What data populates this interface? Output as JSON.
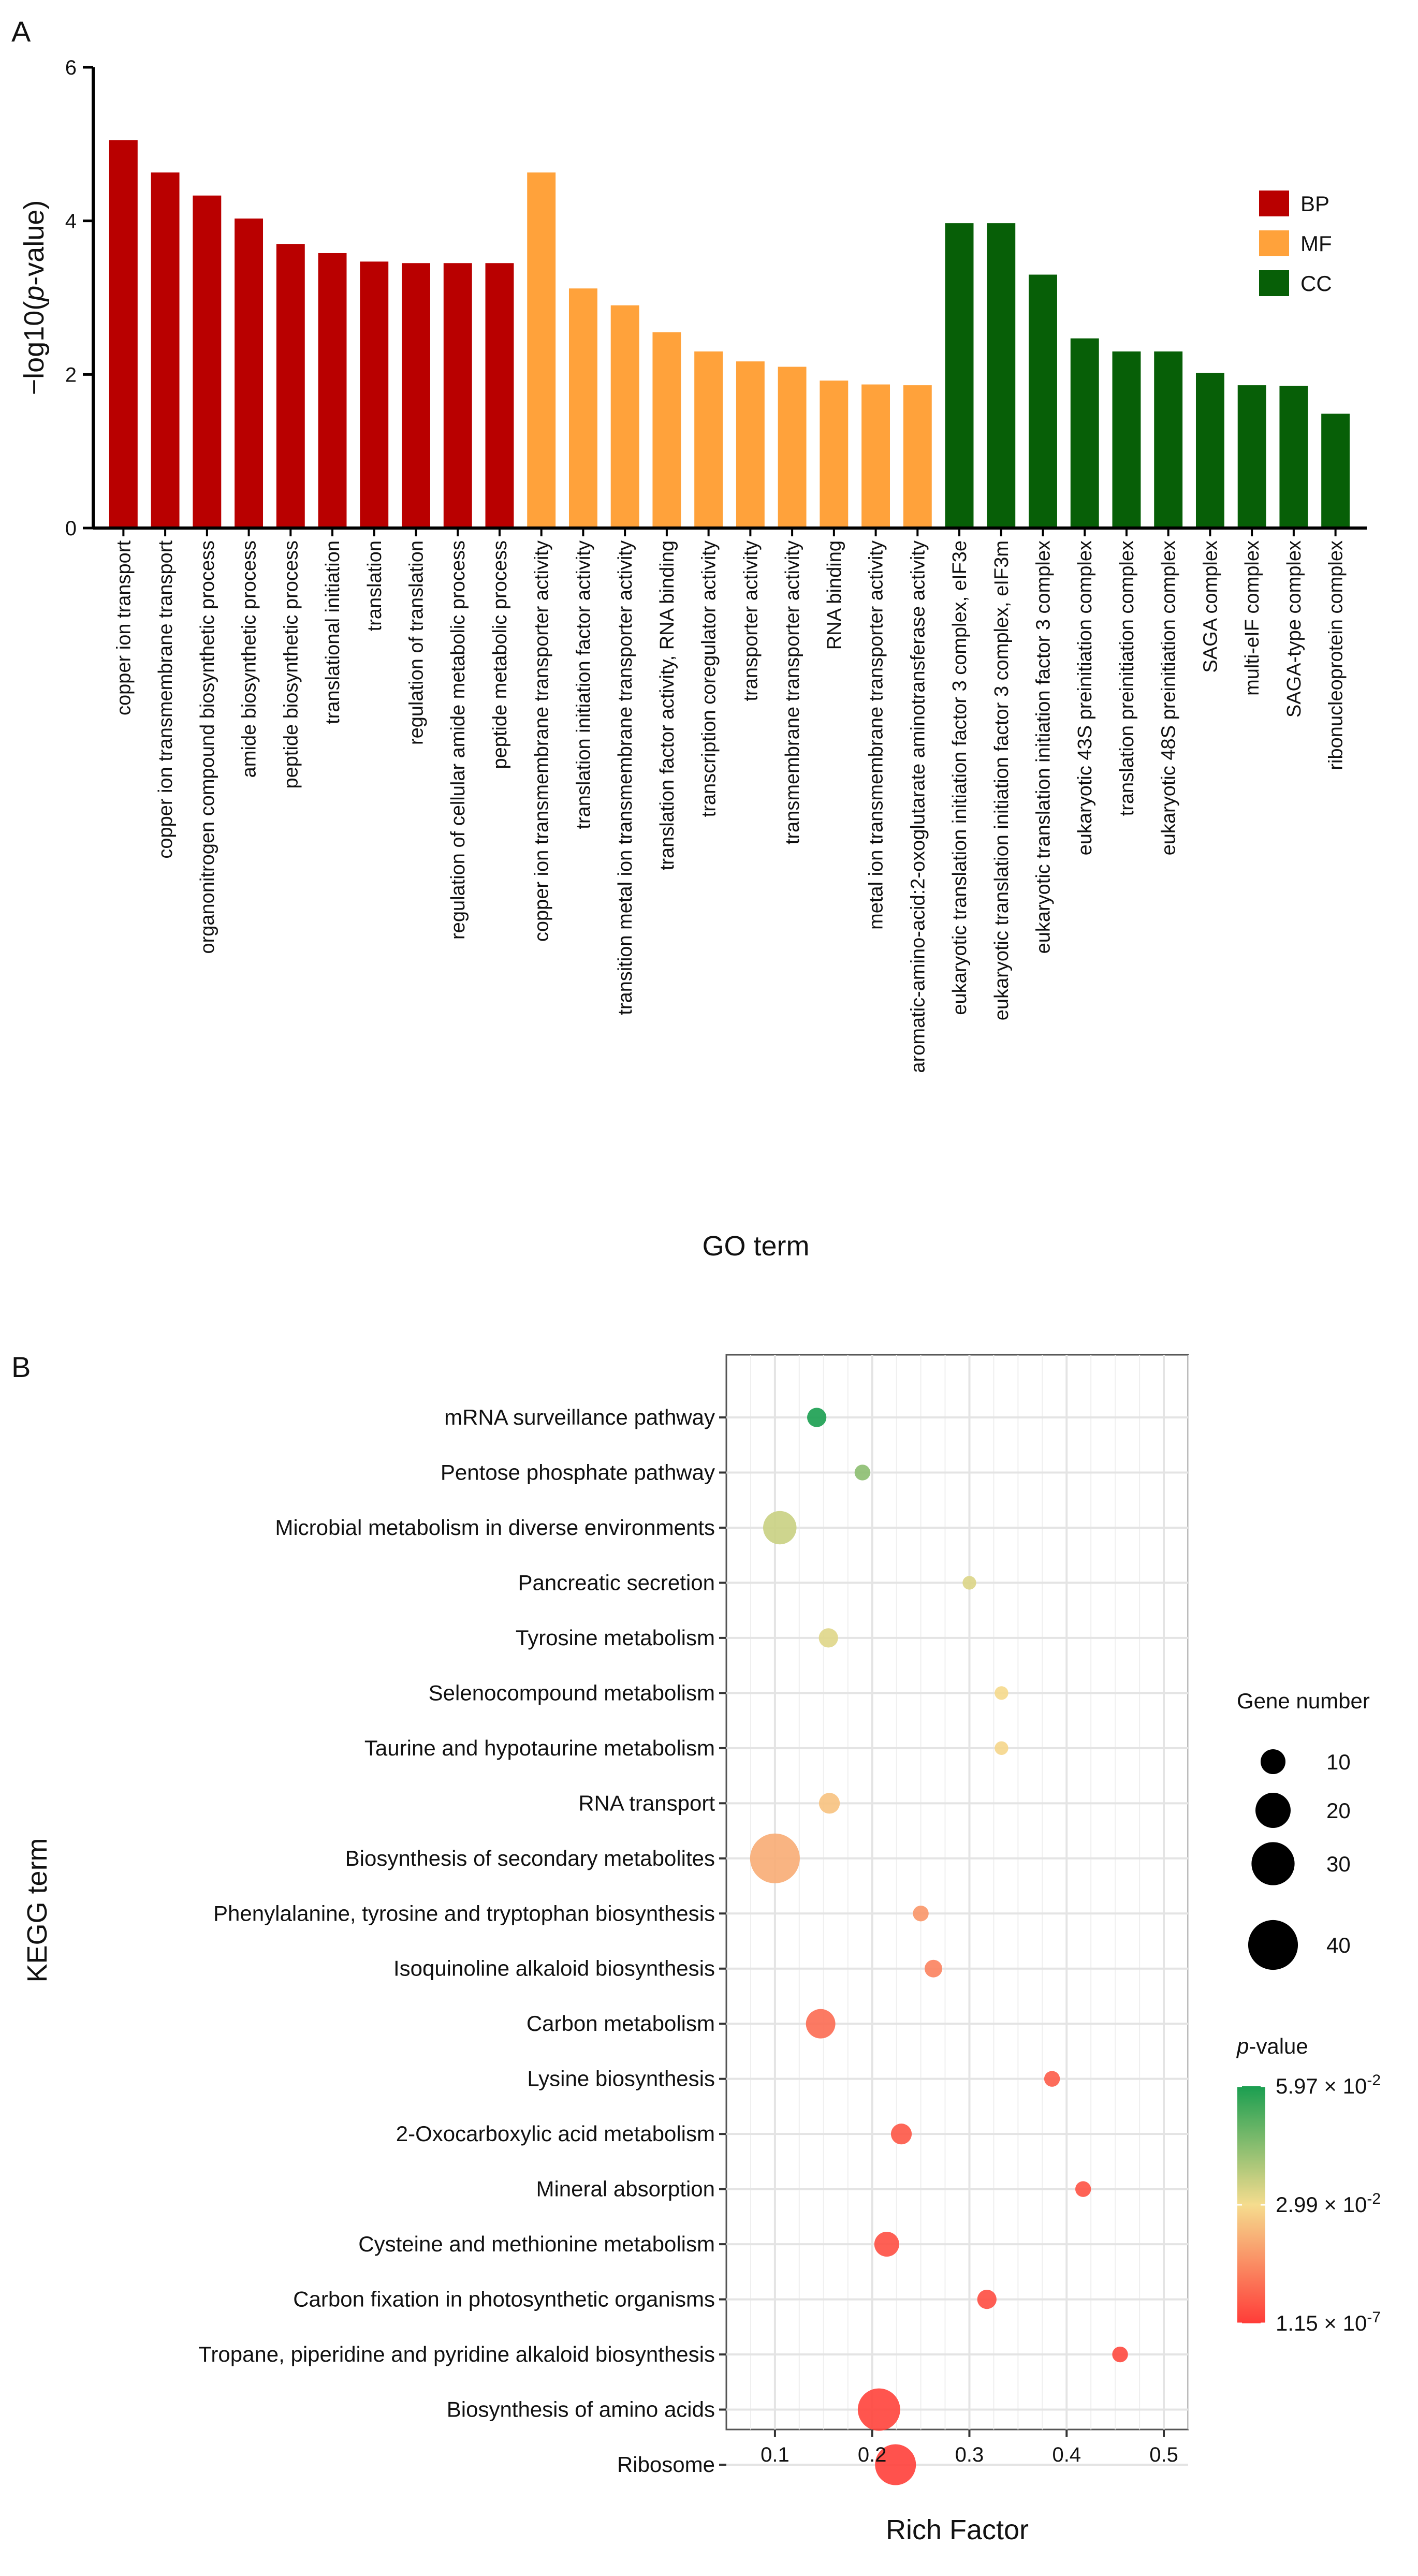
{
  "chart_data": [
    {
      "panel": "A",
      "type": "bar",
      "xlabel": "GO term",
      "ylabel": "-log10(p-value)",
      "ylim": [
        0,
        6
      ],
      "yticks": [
        0,
        2,
        4,
        6
      ],
      "legend": {
        "placement": "top-right",
        "entries": [
          {
            "name": "BP",
            "color": "#b90000"
          },
          {
            "name": "MF",
            "color": "#ffa23b"
          },
          {
            "name": "CC",
            "color": "#075f07"
          }
        ]
      },
      "bars": [
        {
          "label": "copper ion transport",
          "value": 5.05,
          "group": "BP"
        },
        {
          "label": "copper ion transmembrane transport",
          "value": 4.63,
          "group": "BP"
        },
        {
          "label": "organonitrogen compound biosynthetic process",
          "value": 4.33,
          "group": "BP"
        },
        {
          "label": "amide biosynthetic process",
          "value": 4.03,
          "group": "BP"
        },
        {
          "label": "peptide biosynthetic process",
          "value": 3.7,
          "group": "BP"
        },
        {
          "label": "translational initiation",
          "value": 3.58,
          "group": "BP"
        },
        {
          "label": "translation",
          "value": 3.47,
          "group": "BP"
        },
        {
          "label": "regulation of translation",
          "value": 3.45,
          "group": "BP"
        },
        {
          "label": "regulation of cellular amide metabolic process",
          "value": 3.45,
          "group": "BP"
        },
        {
          "label": "peptide metabolic process",
          "value": 3.45,
          "group": "BP"
        },
        {
          "label": "copper ion transmembrane transporter activity",
          "value": 4.63,
          "group": "MF"
        },
        {
          "label": "translation initiation factor activity",
          "value": 3.12,
          "group": "MF"
        },
        {
          "label": "transition metal ion transmembrane transporter activity",
          "value": 2.9,
          "group": "MF"
        },
        {
          "label": "translation factor activity, RNA binding",
          "value": 2.55,
          "group": "MF"
        },
        {
          "label": "transcription coregulator activity",
          "value": 2.3,
          "group": "MF"
        },
        {
          "label": "transporter activity",
          "value": 2.17,
          "group": "MF"
        },
        {
          "label": "transmembrane transporter activity",
          "value": 2.1,
          "group": "MF"
        },
        {
          "label": "RNA binding",
          "value": 1.92,
          "group": "MF"
        },
        {
          "label": "metal ion transmembrane transporter activity",
          "value": 1.87,
          "group": "MF"
        },
        {
          "label": "aromatic-amino-acid:2-oxoglutarate aminotransferase activity",
          "value": 1.86,
          "group": "MF"
        },
        {
          "label": "eukaryotic translation initiation factor 3 complex, eIF3e",
          "value": 3.97,
          "group": "CC"
        },
        {
          "label": "eukaryotic translation initiation factor 3 complex, eIF3m",
          "value": 3.97,
          "group": "CC"
        },
        {
          "label": "eukaryotic translation initiation factor 3 complex",
          "value": 3.3,
          "group": "CC"
        },
        {
          "label": "eukaryotic 43S preinitiation complex",
          "value": 2.47,
          "group": "CC"
        },
        {
          "label": "translation preinitiation complex",
          "value": 2.3,
          "group": "CC"
        },
        {
          "label": "eukaryotic 48S preinitiation complex",
          "value": 2.3,
          "group": "CC"
        },
        {
          "label": "SAGA complex",
          "value": 2.02,
          "group": "CC"
        },
        {
          "label": "multi-eIF complex",
          "value": 1.86,
          "group": "CC"
        },
        {
          "label": "SAGA-type complex",
          "value": 1.85,
          "group": "CC"
        },
        {
          "label": "ribonucleoprotein complex",
          "value": 1.49,
          "group": "CC"
        }
      ]
    },
    {
      "panel": "B",
      "type": "scatter",
      "xlabel": "Rich Factor",
      "ylabel": "KEGG term",
      "xlim": [
        0.05,
        0.525
      ],
      "xticks": [
        "0.1",
        "0.2",
        "0.3",
        "0.4",
        "0.5"
      ],
      "size_legend": {
        "title": "Gene number",
        "values": [
          10,
          20,
          30,
          40
        ]
      },
      "color_legend": {
        "title_italic": "p",
        "title_rest": "-value",
        "ticks": [
          {
            "mantissa": "5.97",
            "exp": "-2",
            "pos": 1.0
          },
          {
            "mantissa": "2.99",
            "exp": "-2",
            "pos": 0.5
          },
          {
            "mantissa": "1.15",
            "exp": "-7",
            "pos": 0.0
          }
        ],
        "colors": [
          "#1a9e50",
          "#f5dc8e",
          "#ff3c38"
        ]
      },
      "points": [
        {
          "term": "mRNA surveillance pathway",
          "rich_factor": 0.143,
          "genes": 6,
          "p_norm": 1.0
        },
        {
          "term": "Pentose phosphate pathway",
          "rich_factor": 0.19,
          "genes": 4,
          "p_norm": 0.74
        },
        {
          "term": "Microbial metabolism in diverse environments",
          "rich_factor": 0.105,
          "genes": 18,
          "p_norm": 0.6
        },
        {
          "term": "Pancreatic secretion",
          "rich_factor": 0.3,
          "genes": 3,
          "p_norm": 0.56
        },
        {
          "term": "Tyrosine metabolism",
          "rich_factor": 0.155,
          "genes": 6,
          "p_norm": 0.55
        },
        {
          "term": "Selenocompound metabolism",
          "rich_factor": 0.333,
          "genes": 3,
          "p_norm": 0.49
        },
        {
          "term": "Taurine and hypotaurine metabolism",
          "rich_factor": 0.333,
          "genes": 3,
          "p_norm": 0.48
        },
        {
          "term": "RNA transport",
          "rich_factor": 0.156,
          "genes": 7,
          "p_norm": 0.42
        },
        {
          "term": "Biosynthesis of secondary metabolites",
          "rich_factor": 0.1,
          "genes": 40,
          "p_norm": 0.35
        },
        {
          "term": "Phenylalanine, tyrosine and tryptophan biosynthesis",
          "rich_factor": 0.25,
          "genes": 4,
          "p_norm": 0.28
        },
        {
          "term": "Isoquinoline alkaloid biosynthesis",
          "rich_factor": 0.263,
          "genes": 5,
          "p_norm": 0.22
        },
        {
          "term": "Carbon metabolism",
          "rich_factor": 0.147,
          "genes": 14,
          "p_norm": 0.15
        },
        {
          "term": "Lysine biosynthesis",
          "rich_factor": 0.385,
          "genes": 4,
          "p_norm": 0.1
        },
        {
          "term": "2-Oxocarboxylic acid metabolism",
          "rich_factor": 0.23,
          "genes": 7,
          "p_norm": 0.08
        },
        {
          "term": "Mineral absorption",
          "rich_factor": 0.417,
          "genes": 4,
          "p_norm": 0.07
        },
        {
          "term": "Cysteine and methionine metabolism",
          "rich_factor": 0.215,
          "genes": 10,
          "p_norm": 0.06
        },
        {
          "term": "Carbon fixation in photosynthetic organisms",
          "rich_factor": 0.318,
          "genes": 6,
          "p_norm": 0.05
        },
        {
          "term": "Tropane, piperidine and pyridine alkaloid biosynthesis",
          "rich_factor": 0.455,
          "genes": 4,
          "p_norm": 0.04
        },
        {
          "term": "Biosynthesis of amino acids",
          "rich_factor": 0.207,
          "genes": 29,
          "p_norm": 0.02
        },
        {
          "term": "Ribosome",
          "rich_factor": 0.224,
          "genes": 27,
          "p_norm": 0.01
        }
      ]
    }
  ]
}
